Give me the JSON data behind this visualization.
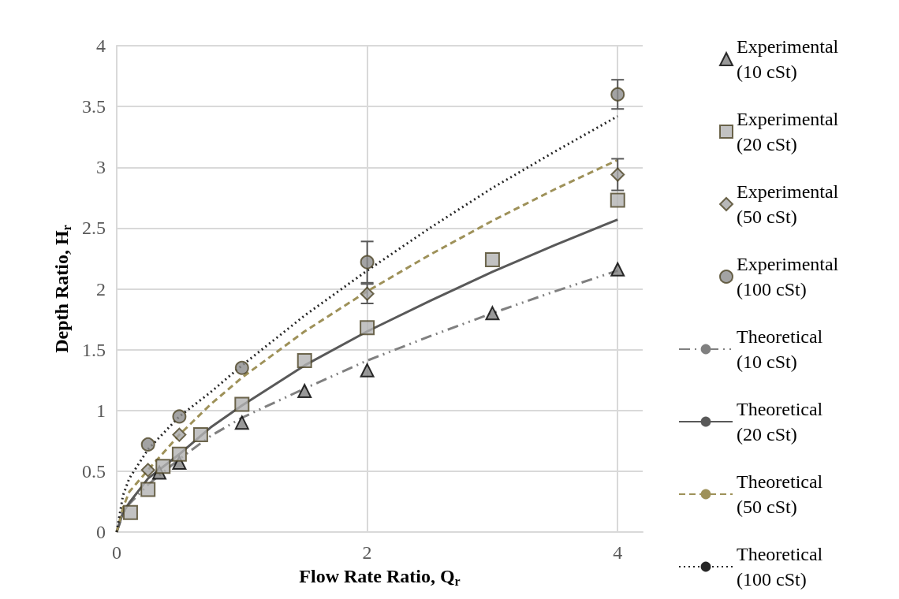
{
  "chart_data": {
    "type": "scatter",
    "xlabel": "Flow Rate Ratio, Q$_{r}$",
    "ylabel": "Depth Ratio, H$_{r}$",
    "xlim": [
      0,
      4.2
    ],
    "xticks": [
      0,
      2,
      4
    ],
    "ylim": [
      0,
      4
    ],
    "yticks": [
      0,
      0.5,
      1,
      1.5,
      2,
      2.5,
      3,
      3.5,
      4
    ],
    "grid": true,
    "legend": "right",
    "series": [
      {
        "name": "Experimental (10 cSt)",
        "marker": "triangle",
        "color": "#7f7f7f",
        "x": [
          0.34,
          0.5,
          1,
          1.5,
          2,
          3,
          4
        ],
        "values": [
          0.49,
          0.57,
          0.9,
          1.16,
          1.33,
          1.8,
          2.16
        ]
      },
      {
        "name": "Experimental (20 cSt)",
        "marker": "square",
        "color": "#b3b3b3",
        "x": [
          0.11,
          0.25,
          0.37,
          0.5,
          0.67,
          1,
          1.5,
          2,
          3,
          4
        ],
        "values": [
          0.16,
          0.35,
          0.54,
          0.64,
          0.8,
          1.05,
          1.41,
          1.68,
          2.24,
          2.73
        ]
      },
      {
        "name": "Experimental (50 cSt)",
        "marker": "diamond",
        "color": "#a6a6a6",
        "x": [
          0.25,
          0.5,
          1,
          2,
          4
        ],
        "values": [
          0.51,
          0.8,
          null,
          1.96,
          2.94
        ],
        "errors": [
          null,
          null,
          null,
          0.08,
          0.13
        ]
      },
      {
        "name": "Experimental (100 cSt)",
        "marker": "circle",
        "color": "#8c8c8c",
        "x": [
          0.25,
          0.5,
          1,
          2,
          4
        ],
        "values": [
          0.72,
          0.95,
          1.35,
          2.22,
          3.6
        ],
        "errors": [
          null,
          null,
          null,
          0.17,
          0.12
        ]
      },
      {
        "name": "Theoretical (10 cSt)",
        "type": "line",
        "line_style": "dashdot",
        "marker": "none",
        "color": "#808080",
        "x": [
          0,
          0.05,
          0.1,
          0.25,
          0.5,
          0.75,
          1,
          1.5,
          2,
          2.5,
          3,
          3.5,
          4
        ],
        "values": [
          0,
          0.15,
          0.23,
          0.39,
          0.6,
          0.79,
          0.94,
          1.18,
          1.41,
          1.61,
          1.8,
          1.98,
          2.15
        ]
      },
      {
        "name": "Theoretical (20 cSt)",
        "type": "line",
        "line_style": "solid",
        "marker": "none",
        "color": "#595959",
        "x": [
          0,
          0.05,
          0.1,
          0.25,
          0.5,
          0.75,
          1,
          1.5,
          2,
          2.5,
          3,
          3.5,
          4
        ],
        "values": [
          0,
          0.16,
          0.24,
          0.44,
          0.64,
          0.86,
          1.04,
          1.37,
          1.65,
          1.9,
          2.14,
          2.36,
          2.57
        ]
      },
      {
        "name": "Theoretical (50 cSt)",
        "type": "line",
        "line_style": "dashed",
        "marker": "none",
        "color": "#9e9159",
        "x": [
          0,
          0.05,
          0.1,
          0.25,
          0.5,
          0.75,
          1,
          1.5,
          2,
          2.5,
          3,
          3.5,
          4
        ],
        "values": [
          0,
          0.2,
          0.33,
          0.51,
          0.8,
          1.05,
          1.27,
          1.65,
          1.98,
          2.28,
          2.56,
          2.82,
          3.06
        ]
      },
      {
        "name": "Theoretical (100 cSt)",
        "type": "line",
        "line_style": "dotted",
        "marker": "none",
        "color": "#262626",
        "x": [
          0,
          0.05,
          0.1,
          0.25,
          0.5,
          0.75,
          1,
          1.5,
          2,
          2.5,
          3,
          3.5,
          4
        ],
        "values": [
          0,
          0.3,
          0.44,
          0.68,
          0.95,
          1.15,
          1.37,
          1.78,
          2.15,
          2.5,
          2.83,
          3.13,
          3.42
        ]
      }
    ]
  }
}
